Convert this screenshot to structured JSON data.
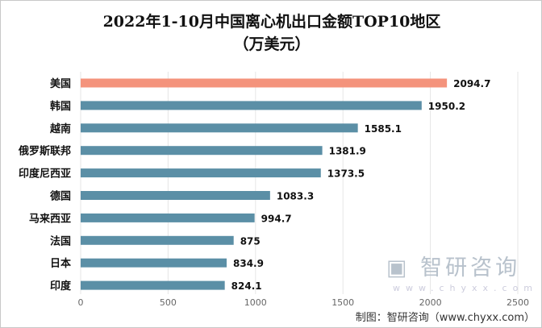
{
  "chart_data": {
    "type": "bar",
    "orientation": "horizontal",
    "title": "2022年1-10月中国离心机出口金额TOP10地区",
    "subtitle": "（万美元）",
    "categories": [
      "美国",
      "韩国",
      "越南",
      "俄罗斯联邦",
      "印度尼西亚",
      "德国",
      "马来西亚",
      "法国",
      "日本",
      "印度"
    ],
    "values": [
      2094.7,
      1950.2,
      1585.1,
      1381.9,
      1373.5,
      1083.3,
      994.7,
      875,
      834.9,
      824.1
    ],
    "value_labels": [
      "2094.7",
      "1950.2",
      "1585.1",
      "1381.9",
      "1373.5",
      "1083.3",
      "994.7",
      "875",
      "834.9",
      "824.1"
    ],
    "xlim": [
      0,
      2500
    ],
    "x_ticks": [
      "0",
      "500",
      "1000",
      "1500",
      "2000",
      "2500"
    ],
    "grid": true,
    "colors": {
      "highlight": "#F4937C",
      "default": "#5B8FA6"
    }
  },
  "watermark": {
    "brand": "智研咨询",
    "url": "www.chyxx.com"
  },
  "source": "制图：智研咨询（www.chyxx.com）"
}
